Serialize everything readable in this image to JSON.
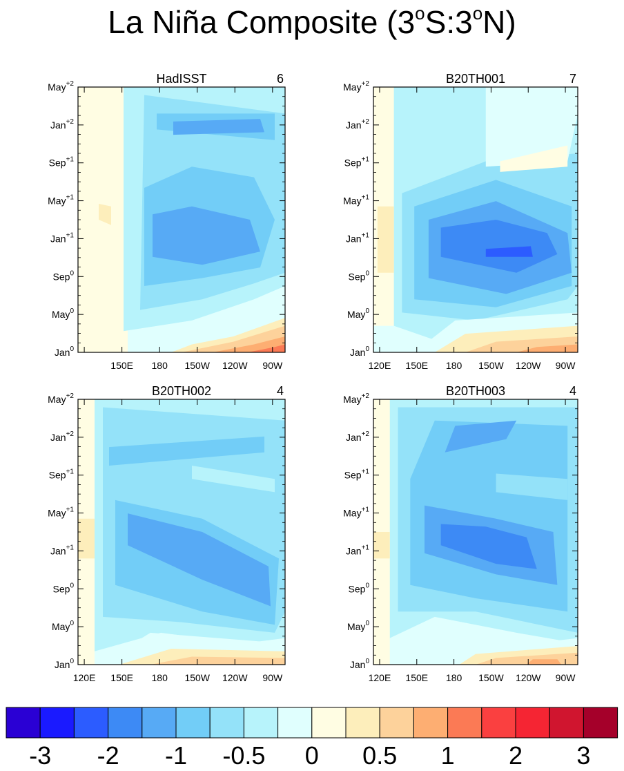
{
  "chart_data": {
    "type": "heatmap",
    "title": "La Niña Composite (3°S:3°N)",
    "title_main": "La Niña Composite (3",
    "title_deg": "o",
    "title_mid": "S:3",
    "title_end": "N)",
    "x_ticks": [
      "120E",
      "150E",
      "180",
      "150W",
      "120W",
      "90W"
    ],
    "y_ticks": [
      {
        "base": "Jan",
        "sup": "0"
      },
      {
        "base": "May",
        "sup": "0"
      },
      {
        "base": "Sep",
        "sup": "0"
      },
      {
        "base": "Jan",
        "sup": "+1"
      },
      {
        "base": "May",
        "sup": "+1"
      },
      {
        "base": "Sep",
        "sup": "+1"
      },
      {
        "base": "Jan",
        "sup": "+2"
      },
      {
        "base": "May",
        "sup": "+2"
      }
    ],
    "panels": [
      {
        "name": "HadISST",
        "count": "6",
        "show_120E": false
      },
      {
        "name": "B20TH001",
        "count": "7",
        "show_120E": true
      },
      {
        "name": "B20TH002",
        "count": "4",
        "show_120E": true
      },
      {
        "name": "B20TH003",
        "count": "4",
        "show_120E": true
      }
    ],
    "colorbar": {
      "colors": [
        "#2a00d4",
        "#1a1aff",
        "#2c5cff",
        "#3d8af5",
        "#57aaf5",
        "#72cdf7",
        "#94e2f9",
        "#b7f3fb",
        "#e0fffe",
        "#fffde3",
        "#fdeebb",
        "#fdd29b",
        "#fdae72",
        "#fb7a55",
        "#fa4040",
        "#f52533",
        "#d0152f",
        "#a5002a"
      ],
      "labels": [
        "-3",
        "-2",
        "-1",
        "-0.5",
        "0",
        "0.5",
        "1",
        "2",
        "3"
      ],
      "label_positions": [
        1,
        3,
        5,
        7,
        9,
        11,
        13,
        15,
        17
      ]
    }
  }
}
